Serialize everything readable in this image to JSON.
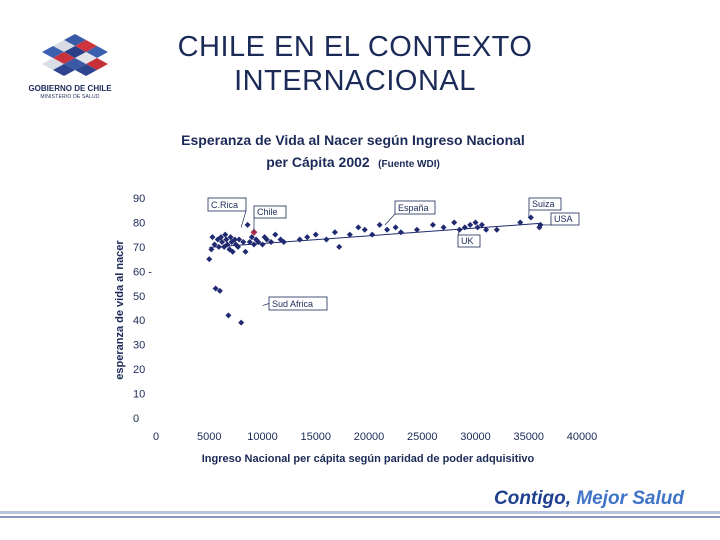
{
  "logo": {
    "line1": "GOBIERNO DE CHILE",
    "line2": "MINISTERIO DE SALUD"
  },
  "slide_title": {
    "line1": "CHILE EN EL CONTEXTO",
    "line2": "INTERNACIONAL"
  },
  "footer": {
    "slogan_part1": "Contigo, ",
    "slogan_part2": "Mejor Salud"
  },
  "colors": {
    "marker": "#1f2a70",
    "chile_marker": "#b0304a",
    "title": "#1b2a57"
  },
  "chart_data": {
    "type": "scatter",
    "title_line1": "Esperanza de Vida al Nacer según Ingreso Nacional",
    "title_line2": "per Cápita 2002",
    "title_source": "(Fuente WDI)",
    "xlabel": "Ingreso Nacional per cápita según paridad de poder adquisitivo",
    "ylabel": "esperanza de vida al nacer",
    "xlim": [
      0,
      40000
    ],
    "ylim": [
      0,
      90
    ],
    "x_ticks": [
      "0",
      "5000",
      "10000",
      "15000",
      "20000",
      "25000",
      "30000",
      "35000",
      "40000"
    ],
    "y_ticks": [
      "0",
      "10",
      "20",
      "30",
      "40",
      "50",
      "60 -",
      "70",
      "80",
      "90"
    ],
    "trend": {
      "x": [
        5000,
        36000
      ],
      "y": [
        69.8,
        79.6
      ]
    },
    "points": [
      [
        5000,
        65
      ],
      [
        5200,
        69
      ],
      [
        5300,
        74
      ],
      [
        5500,
        71
      ],
      [
        5600,
        53
      ],
      [
        5800,
        73
      ],
      [
        5900,
        70
      ],
      [
        6000,
        52
      ],
      [
        6100,
        74
      ],
      [
        6200,
        72
      ],
      [
        6400,
        70
      ],
      [
        6500,
        75
      ],
      [
        6600,
        73
      ],
      [
        6700,
        71
      ],
      [
        6800,
        42
      ],
      [
        6900,
        69
      ],
      [
        7000,
        74
      ],
      [
        7100,
        72
      ],
      [
        7200,
        68
      ],
      [
        7400,
        73
      ],
      [
        7500,
        71
      ],
      [
        7700,
        70
      ],
      [
        7800,
        73
      ],
      [
        8000,
        39
      ],
      [
        8200,
        72
      ],
      [
        8400,
        68
      ],
      [
        8600,
        79
      ],
      [
        8800,
        72
      ],
      [
        9000,
        74
      ],
      [
        9200,
        71
      ],
      [
        9400,
        73
      ],
      [
        9600,
        72
      ],
      [
        10000,
        71
      ],
      [
        10200,
        74
      ],
      [
        10400,
        73
      ],
      [
        10800,
        72
      ],
      [
        11200,
        75
      ],
      [
        11700,
        73
      ],
      [
        12000,
        72
      ],
      [
        13500,
        73
      ],
      [
        14200,
        74
      ],
      [
        15000,
        75
      ],
      [
        16000,
        73
      ],
      [
        16800,
        76
      ],
      [
        17200,
        70
      ],
      [
        18200,
        75
      ],
      [
        19000,
        78
      ],
      [
        19600,
        77
      ],
      [
        20300,
        75
      ],
      [
        21000,
        79
      ],
      [
        21700,
        77
      ],
      [
        22500,
        78
      ],
      [
        23000,
        76
      ],
      [
        24500,
        77
      ],
      [
        26000,
        79
      ],
      [
        27000,
        78
      ],
      [
        28000,
        80
      ],
      [
        28500,
        77
      ],
      [
        29000,
        78
      ],
      [
        29500,
        79
      ],
      [
        30000,
        80
      ],
      [
        30200,
        78
      ],
      [
        30600,
        79
      ],
      [
        31000,
        77
      ],
      [
        32000,
        77
      ],
      [
        34200,
        80
      ],
      [
        35200,
        82
      ],
      [
        36000,
        78
      ],
      [
        36100,
        79
      ]
    ],
    "chile_point": [
      9200,
      76
    ],
    "annotations": [
      {
        "text": "C.Rica",
        "x": 8000,
        "y": 78
      },
      {
        "text": "Chile",
        "x": 9200,
        "y": 76
      },
      {
        "text": "España",
        "x": 21500,
        "y": 79
      },
      {
        "text": "Suiza",
        "x": 35000,
        "y": 82
      },
      {
        "text": "USA",
        "x": 36000,
        "y": 79
      },
      {
        "text": "UK",
        "x": 28500,
        "y": 77
      },
      {
        "text": "Sud Africa",
        "x": 10000,
        "y": 46
      }
    ]
  }
}
